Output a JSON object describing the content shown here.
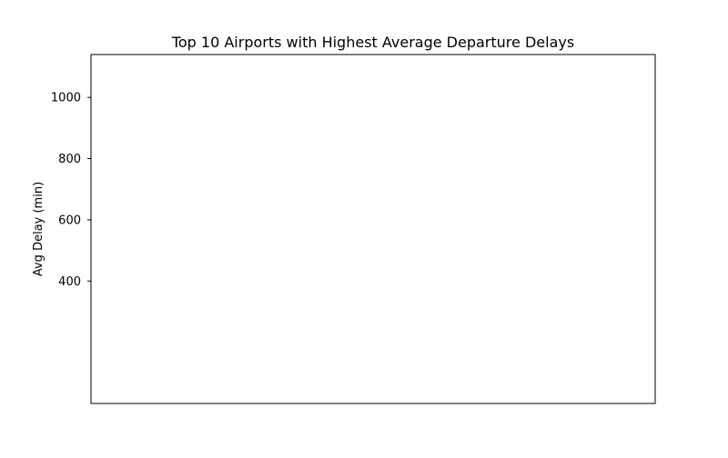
{
  "chart_data": {
    "type": "bar",
    "title": "Top 10 Airports with Highest Average Departure Delays",
    "xlabel": "",
    "ylabel": "Avg Delay (min)",
    "ylim": [
      0,
      1140
    ],
    "yticks": [
      400,
      600,
      800,
      1000
    ],
    "categories": [],
    "values": [],
    "grid": false,
    "legend": "none",
    "colors": {
      "axes": "#000000",
      "background": "#ffffff"
    }
  }
}
